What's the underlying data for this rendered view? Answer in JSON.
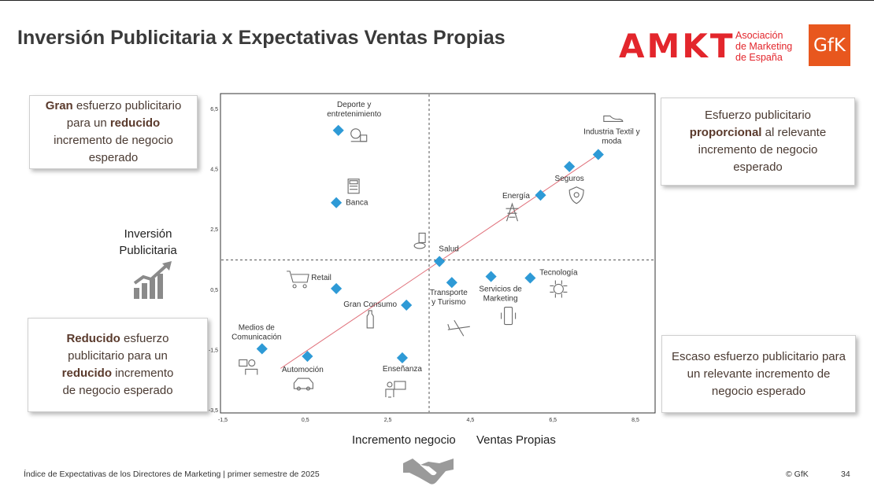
{
  "title": "Inversión Publicitaria x Expectativas Ventas Propias",
  "logos": {
    "amkt_mark": "AMKT",
    "amkt_name_lines": [
      "Asociación",
      "de Marketing",
      "de España"
    ],
    "gfk": "GfK"
  },
  "callouts": {
    "top_left": {
      "pre": "",
      "b1": "Gran",
      "mid": " esfuerzo publicitario para un ",
      "b2": "reducido",
      "post": " incremento de negocio esperado"
    },
    "top_right": {
      "pre": "Esfuerzo publicitario ",
      "b1": "proporcional",
      "mid": " al relevante incremento de negocio esperado",
      "b2": "",
      "post": ""
    },
    "bottom_left": {
      "pre": "",
      "b1": "Reducido",
      "mid": " esfuerzo publicitario para un ",
      "b2": "reducido",
      "post": " incremento de negocio esperado"
    },
    "bottom_right": {
      "pre": "Escaso esfuerzo publicitario para un  relevante incremento de negocio esperado",
      "b1": "",
      "mid": "",
      "b2": "",
      "post": ""
    }
  },
  "y_title": "Inversión Publicitaria",
  "x_label_left": "Incremento negocio",
  "x_label_right": "Ventas Propias",
  "footer": {
    "left": "Índice de Expectativas de los Directores de Marketing |  primer semestre de 2025",
    "copyright": "© GfK",
    "page": "34"
  },
  "chart_data": {
    "type": "scatter",
    "xlim": [
      -1.5,
      9.0
    ],
    "ylim": [
      -3.5,
      6.9
    ],
    "x_ticks": [
      "-1,5",
      "0,5",
      "2,5",
      "4,5",
      "6,5",
      "8,5"
    ],
    "x_tick_values": [
      -1.5,
      0.5,
      2.5,
      4.5,
      6.5,
      8.5
    ],
    "y_ticks": [
      "6,5",
      "4,5",
      "2,5",
      "0,5",
      "-1,5",
      "-3,5"
    ],
    "y_tick_values": [
      6.5,
      4.5,
      2.5,
      0.5,
      -1.5,
      -3.5
    ],
    "reference_lines": {
      "x": 3.5,
      "y": 1.5
    },
    "trend_line": {
      "x": [
        -0.1,
        7.6
      ],
      "y": [
        -2.1,
        5.0
      ]
    },
    "marker_color": "#2e9ad6",
    "trend_color": "#e0707a",
    "points": [
      {
        "label": "Deporte y entretenimiento",
        "x": 1.3,
        "y": 5.8,
        "icon": "football-icon"
      },
      {
        "label": "Banca",
        "x": 1.25,
        "y": 3.4,
        "icon": "calculator-icon"
      },
      {
        "label": "Industria Textil y moda",
        "x": 7.6,
        "y": 5.0,
        "icon": "shoe-icon"
      },
      {
        "label": "Seguros",
        "x": 6.9,
        "y": 4.6,
        "icon": "shield-icon"
      },
      {
        "label": "Energía",
        "x": 6.2,
        "y": 3.65,
        "icon": "power-tower-icon"
      },
      {
        "label": "Salud",
        "x": 3.75,
        "y": 1.45,
        "icon": "medicine-icon"
      },
      {
        "label": "Retail",
        "x": 1.25,
        "y": 0.55,
        "icon": "shopping-cart-icon"
      },
      {
        "label": "Transporte y Turismo",
        "x": 4.05,
        "y": 0.75,
        "icon": "airplane-icon"
      },
      {
        "label": "Servicios de Marketing",
        "x": 5.0,
        "y": 0.95,
        "icon": "smartphone-icon"
      },
      {
        "label": "Tecnología",
        "x": 5.95,
        "y": 0.9,
        "icon": "chip-icon"
      },
      {
        "label": "Gran Consumo",
        "x": 2.95,
        "y": 0.0,
        "icon": "bottle-icon"
      },
      {
        "label": "Medios de Comunicación",
        "x": -0.55,
        "y": -1.45,
        "icon": "media-icon"
      },
      {
        "label": "Automoción",
        "x": 0.55,
        "y": -1.7,
        "icon": "car-icon"
      },
      {
        "label": "Enseñanza",
        "x": 2.85,
        "y": -1.75,
        "icon": "teacher-icon"
      }
    ]
  }
}
